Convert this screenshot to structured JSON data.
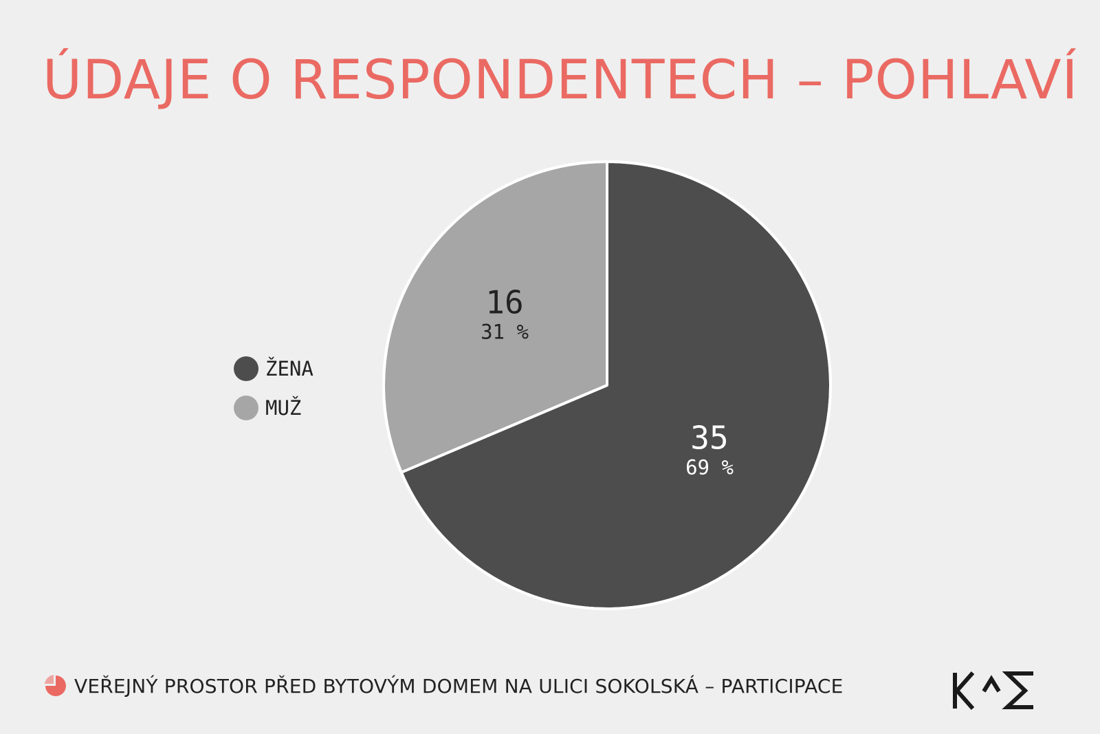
{
  "title": "ÚDAJE O RESPONDENTECH – POHLAVÍ",
  "chart_data": {
    "type": "pie",
    "slices": [
      {
        "label": "ŽENA",
        "value": 35,
        "percent": "69 %",
        "color": "#4d4d4d",
        "text_color": "#ffffff"
      },
      {
        "label": "MUŽ",
        "value": 16,
        "percent": "31 %",
        "color": "#a6a6a6",
        "text_color": "#222222"
      }
    ],
    "legend_placement": "left"
  },
  "legend": {
    "items": [
      {
        "label": "ŽENA",
        "color": "#4d4d4d"
      },
      {
        "label": "MUŽ",
        "color": "#a6a6a6"
      }
    ]
  },
  "footer": {
    "icon": "pie-chart-icon",
    "text": "VEŘEJNÝ PROSTOR PŘED BYTOVÝM DOMEM NA ULICI SOKOLSKÁ – PARTICIPACE"
  },
  "logo": {
    "name": "kam-logo",
    "color": "#1a1a1a"
  },
  "colors": {
    "accent": "#ea6a63",
    "background": "#efefef"
  }
}
